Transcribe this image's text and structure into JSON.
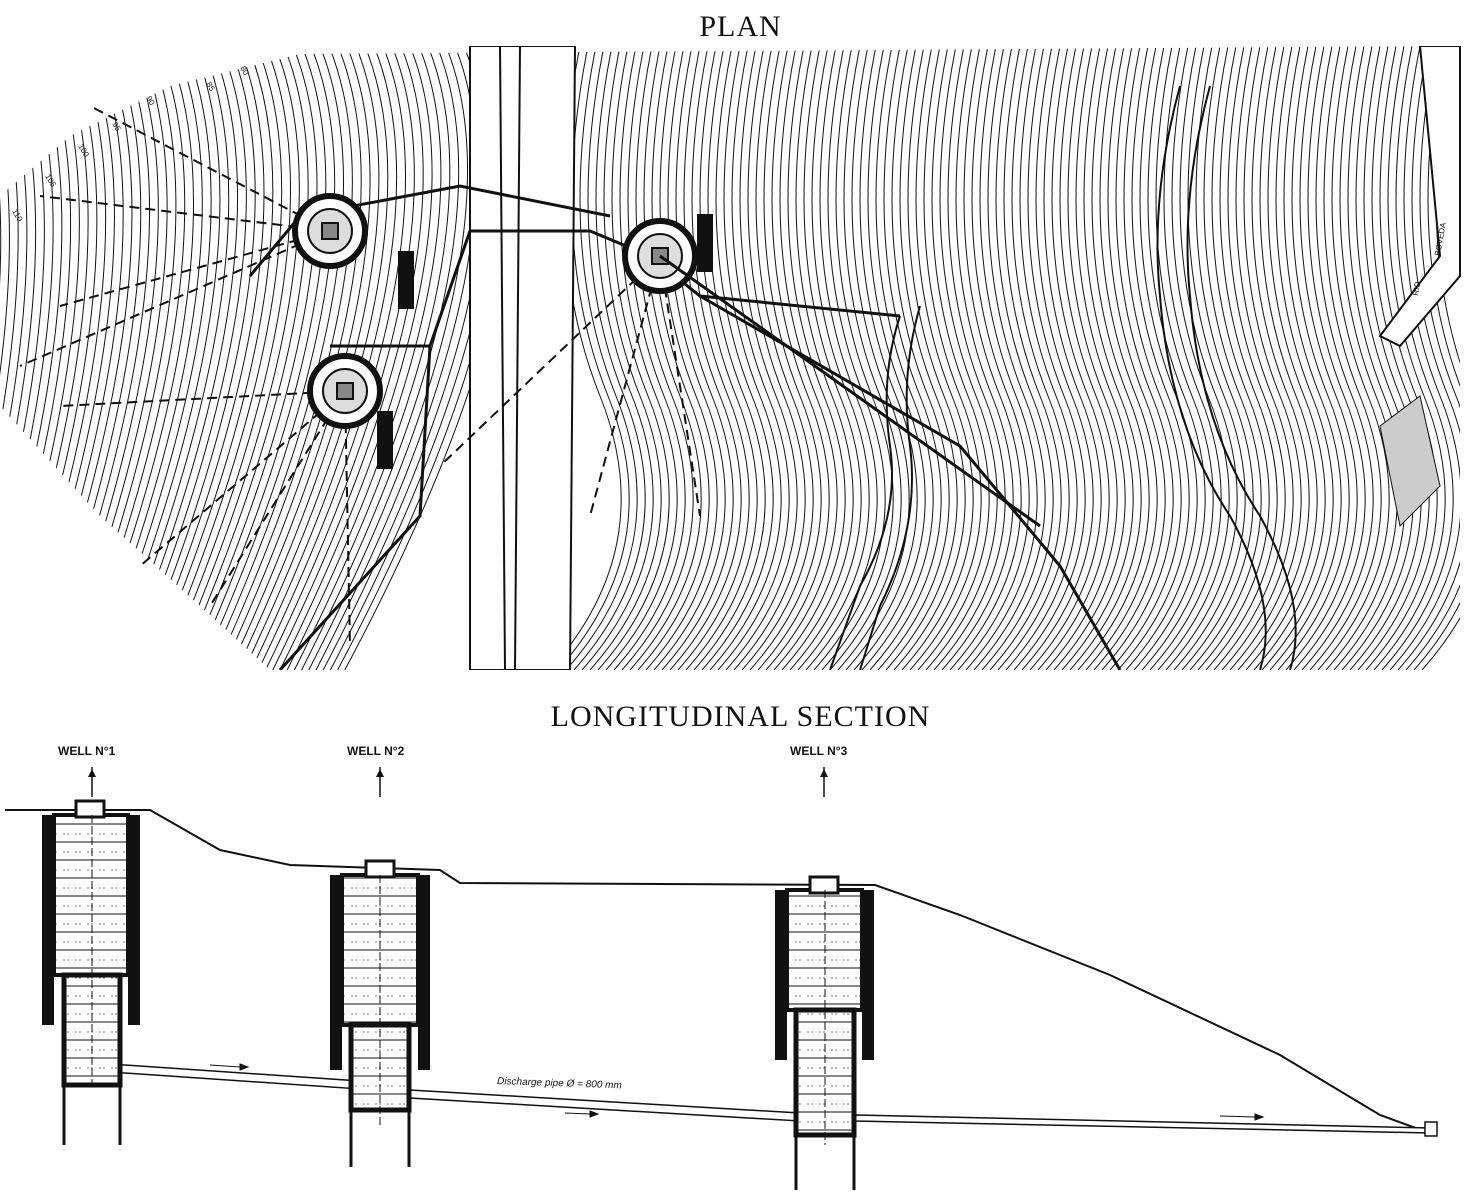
{
  "plan": {
    "title": "PLAN",
    "contour_labels": [
      "110",
      "105",
      "100",
      "95",
      "90",
      "85",
      "80"
    ],
    "river_labels": [
      "RIO",
      "BOVEDA"
    ]
  },
  "section": {
    "title": "LONGITUDINAL SECTION",
    "wells": [
      {
        "label": "WELL N°1"
      },
      {
        "label": "WELL N°2"
      },
      {
        "label": "WELL N°3"
      }
    ],
    "pipe_label": "Discharge pipe Ø = 800 mm"
  },
  "colors": {
    "line": "#111111",
    "background": "#ffffff"
  }
}
